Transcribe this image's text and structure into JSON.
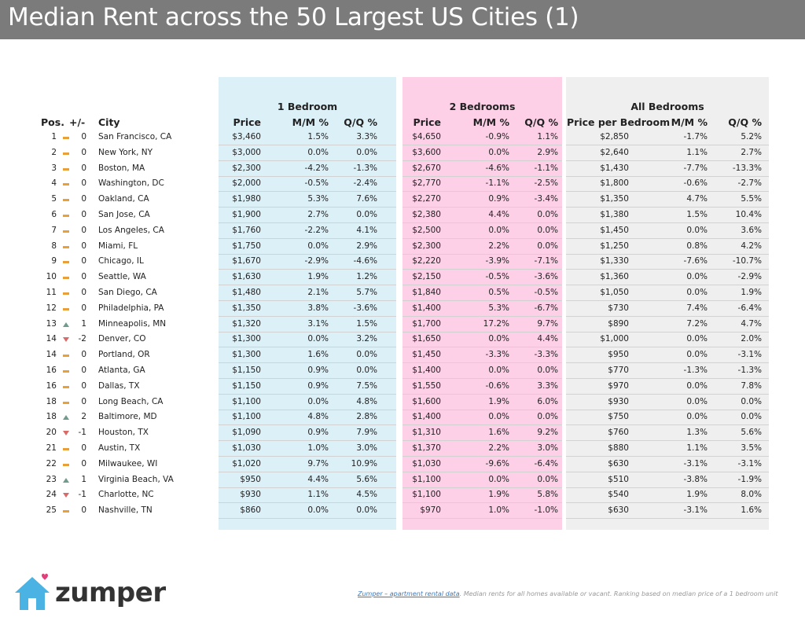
{
  "title": "Median Rent across the 50 Largest US Cities (1)",
  "groups": {
    "one": "1 Bedroom",
    "two": "2 Bedrooms",
    "all": "All Bedrooms"
  },
  "headers": {
    "pos": "Pos.",
    "change": "+/-",
    "city": "City",
    "price1": "Price",
    "mm1": "M/M %",
    "qq1": "Q/Q %",
    "price2": "Price",
    "mm2": "M/M %",
    "qq2": "Q/Q %",
    "price_all": "Price per Bedroom",
    "mm_all": "M/M %",
    "qq_all": "Q/Q %"
  },
  "rows": [
    {
      "pos": "1",
      "trend": "flat",
      "chg": "0",
      "city": "San Francisco, CA",
      "p1": "$3,460",
      "mm1": "1.5%",
      "qq1": "3.3%",
      "p2": "$4,650",
      "mm2": "-0.9%",
      "qq2": "1.1%",
      "pa": "$2,850",
      "mma": "-1.7%",
      "qqa": "5.2%"
    },
    {
      "pos": "2",
      "trend": "flat",
      "chg": "0",
      "city": "New York, NY",
      "p1": "$3,000",
      "mm1": "0.0%",
      "qq1": "0.0%",
      "p2": "$3,600",
      "mm2": "0.0%",
      "qq2": "2.9%",
      "pa": "$2,640",
      "mma": "1.1%",
      "qqa": "2.7%"
    },
    {
      "pos": "3",
      "trend": "flat",
      "chg": "0",
      "city": "Boston, MA",
      "p1": "$2,300",
      "mm1": "-4.2%",
      "qq1": "-1.3%",
      "p2": "$2,670",
      "mm2": "-4.6%",
      "qq2": "-1.1%",
      "pa": "$1,430",
      "mma": "-7.7%",
      "qqa": "-13.3%"
    },
    {
      "pos": "4",
      "trend": "flat",
      "chg": "0",
      "city": "Washington, DC",
      "p1": "$2,000",
      "mm1": "-0.5%",
      "qq1": "-2.4%",
      "p2": "$2,770",
      "mm2": "-1.1%",
      "qq2": "-2.5%",
      "pa": "$1,800",
      "mma": "-0.6%",
      "qqa": "-2.7%"
    },
    {
      "pos": "5",
      "trend": "flat",
      "chg": "0",
      "city": "Oakland, CA",
      "p1": "$1,980",
      "mm1": "5.3%",
      "qq1": "7.6%",
      "p2": "$2,270",
      "mm2": "0.9%",
      "qq2": "-3.4%",
      "pa": "$1,350",
      "mma": "4.7%",
      "qqa": "5.5%"
    },
    {
      "pos": "6",
      "trend": "flat",
      "chg": "0",
      "city": "San Jose, CA",
      "p1": "$1,900",
      "mm1": "2.7%",
      "qq1": "0.0%",
      "p2": "$2,380",
      "mm2": "4.4%",
      "qq2": "0.0%",
      "pa": "$1,380",
      "mma": "1.5%",
      "qqa": "10.4%"
    },
    {
      "pos": "7",
      "trend": "flat",
      "chg": "0",
      "city": "Los Angeles, CA",
      "p1": "$1,760",
      "mm1": "-2.2%",
      "qq1": "4.1%",
      "p2": "$2,500",
      "mm2": "0.0%",
      "qq2": "0.0%",
      "pa": "$1,450",
      "mma": "0.0%",
      "qqa": "3.6%"
    },
    {
      "pos": "8",
      "trend": "flat",
      "chg": "0",
      "city": "Miami, FL",
      "p1": "$1,750",
      "mm1": "0.0%",
      "qq1": "2.9%",
      "p2": "$2,300",
      "mm2": "2.2%",
      "qq2": "0.0%",
      "pa": "$1,250",
      "mma": "0.8%",
      "qqa": "4.2%"
    },
    {
      "pos": "9",
      "trend": "flat",
      "chg": "0",
      "city": "Chicago, IL",
      "p1": "$1,670",
      "mm1": "-2.9%",
      "qq1": "-4.6%",
      "p2": "$2,220",
      "mm2": "-3.9%",
      "qq2": "-7.1%",
      "pa": "$1,330",
      "mma": "-7.6%",
      "qqa": "-10.7%"
    },
    {
      "pos": "10",
      "trend": "flat",
      "chg": "0",
      "city": "Seattle, WA",
      "p1": "$1,630",
      "mm1": "1.9%",
      "qq1": "1.2%",
      "p2": "$2,150",
      "mm2": "-0.5%",
      "qq2": "-3.6%",
      "pa": "$1,360",
      "mma": "0.0%",
      "qqa": "-2.9%"
    },
    {
      "pos": "11",
      "trend": "flat",
      "chg": "0",
      "city": "San Diego, CA",
      "p1": "$1,480",
      "mm1": "2.1%",
      "qq1": "5.7%",
      "p2": "$1,840",
      "mm2": "0.5%",
      "qq2": "-0.5%",
      "pa": "$1,050",
      "mma": "0.0%",
      "qqa": "1.9%"
    },
    {
      "pos": "12",
      "trend": "flat",
      "chg": "0",
      "city": "Philadelphia, PA",
      "p1": "$1,350",
      "mm1": "3.8%",
      "qq1": "-3.6%",
      "p2": "$1,400",
      "mm2": "5.3%",
      "qq2": "-6.7%",
      "pa": "$730",
      "mma": "7.4%",
      "qqa": "-6.4%"
    },
    {
      "pos": "13",
      "trend": "up",
      "chg": "1",
      "city": "Minneapolis, MN",
      "p1": "$1,320",
      "mm1": "3.1%",
      "qq1": "1.5%",
      "p2": "$1,700",
      "mm2": "17.2%",
      "qq2": "9.7%",
      "pa": "$890",
      "mma": "7.2%",
      "qqa": "4.7%"
    },
    {
      "pos": "14",
      "trend": "down",
      "chg": "-2",
      "city": "Denver, CO",
      "p1": "$1,300",
      "mm1": "0.0%",
      "qq1": "3.2%",
      "p2": "$1,650",
      "mm2": "0.0%",
      "qq2": "4.4%",
      "pa": "$1,000",
      "mma": "0.0%",
      "qqa": "2.0%"
    },
    {
      "pos": "14",
      "trend": "flat",
      "chg": "0",
      "city": "Portland, OR",
      "p1": "$1,300",
      "mm1": "1.6%",
      "qq1": "0.0%",
      "p2": "$1,450",
      "mm2": "-3.3%",
      "qq2": "-3.3%",
      "pa": "$950",
      "mma": "0.0%",
      "qqa": "-3.1%"
    },
    {
      "pos": "16",
      "trend": "flat",
      "chg": "0",
      "city": "Atlanta, GA",
      "p1": "$1,150",
      "mm1": "0.9%",
      "qq1": "0.0%",
      "p2": "$1,400",
      "mm2": "0.0%",
      "qq2": "0.0%",
      "pa": "$770",
      "mma": "-1.3%",
      "qqa": "-1.3%"
    },
    {
      "pos": "16",
      "trend": "flat",
      "chg": "0",
      "city": "Dallas, TX",
      "p1": "$1,150",
      "mm1": "0.9%",
      "qq1": "7.5%",
      "p2": "$1,550",
      "mm2": "-0.6%",
      "qq2": "3.3%",
      "pa": "$970",
      "mma": "0.0%",
      "qqa": "7.8%"
    },
    {
      "pos": "18",
      "trend": "flat",
      "chg": "0",
      "city": "Long Beach, CA",
      "p1": "$1,100",
      "mm1": "0.0%",
      "qq1": "4.8%",
      "p2": "$1,600",
      "mm2": "1.9%",
      "qq2": "6.0%",
      "pa": "$930",
      "mma": "0.0%",
      "qqa": "0.0%"
    },
    {
      "pos": "18",
      "trend": "up",
      "chg": "2",
      "city": "Baltimore, MD",
      "p1": "$1,100",
      "mm1": "4.8%",
      "qq1": "2.8%",
      "p2": "$1,400",
      "mm2": "0.0%",
      "qq2": "0.0%",
      "pa": "$750",
      "mma": "0.0%",
      "qqa": "0.0%"
    },
    {
      "pos": "20",
      "trend": "down",
      "chg": "-1",
      "city": "Houston, TX",
      "p1": "$1,090",
      "mm1": "0.9%",
      "qq1": "7.9%",
      "p2": "$1,310",
      "mm2": "1.6%",
      "qq2": "9.2%",
      "pa": "$760",
      "mma": "1.3%",
      "qqa": "5.6%"
    },
    {
      "pos": "21",
      "trend": "flat",
      "chg": "0",
      "city": "Austin, TX",
      "p1": "$1,030",
      "mm1": "1.0%",
      "qq1": "3.0%",
      "p2": "$1,370",
      "mm2": "2.2%",
      "qq2": "3.0%",
      "pa": "$880",
      "mma": "1.1%",
      "qqa": "3.5%"
    },
    {
      "pos": "22",
      "trend": "flat",
      "chg": "0",
      "city": "Milwaukee, WI",
      "p1": "$1,020",
      "mm1": "9.7%",
      "qq1": "10.9%",
      "p2": "$1,030",
      "mm2": "-9.6%",
      "qq2": "-6.4%",
      "pa": "$630",
      "mma": "-3.1%",
      "qqa": "-3.1%"
    },
    {
      "pos": "23",
      "trend": "up",
      "chg": "1",
      "city": "Virginia Beach, VA",
      "p1": "$950",
      "mm1": "4.4%",
      "qq1": "5.6%",
      "p2": "$1,100",
      "mm2": "0.0%",
      "qq2": "0.0%",
      "pa": "$510",
      "mma": "-3.8%",
      "qqa": "-1.9%"
    },
    {
      "pos": "24",
      "trend": "down",
      "chg": "-1",
      "city": "Charlotte, NC",
      "p1": "$930",
      "mm1": "1.1%",
      "qq1": "4.5%",
      "p2": "$1,100",
      "mm2": "1.9%",
      "qq2": "5.8%",
      "pa": "$540",
      "mma": "1.9%",
      "qqa": "8.0%"
    },
    {
      "pos": "25",
      "trend": "flat",
      "chg": "0",
      "city": "Nashville, TN",
      "p1": "$860",
      "mm1": "0.0%",
      "qq1": "0.0%",
      "p2": "$970",
      "mm2": "1.0%",
      "qq2": "-1.0%",
      "pa": "$630",
      "mma": "-3.1%",
      "qqa": "1.6%"
    }
  ],
  "logo": {
    "text": "zumper",
    "icon": "house-heart-icon"
  },
  "footer": {
    "link": "Zumper – apartment rental data",
    "note": ". Median rents for all homes available or vacant. Ranking based on median price of a 1 bedroom unit"
  },
  "colors": {
    "header": "#7b7b7b",
    "one_bedroom": "#dcf0f8",
    "two_bedroom": "#fdd0e8",
    "all_bedroom": "#efefef",
    "trend_flat": "#e8a03a",
    "trend_up": "#6f9c8e",
    "trend_down": "#d96a6a",
    "logo_blue": "#4ab3e4"
  }
}
